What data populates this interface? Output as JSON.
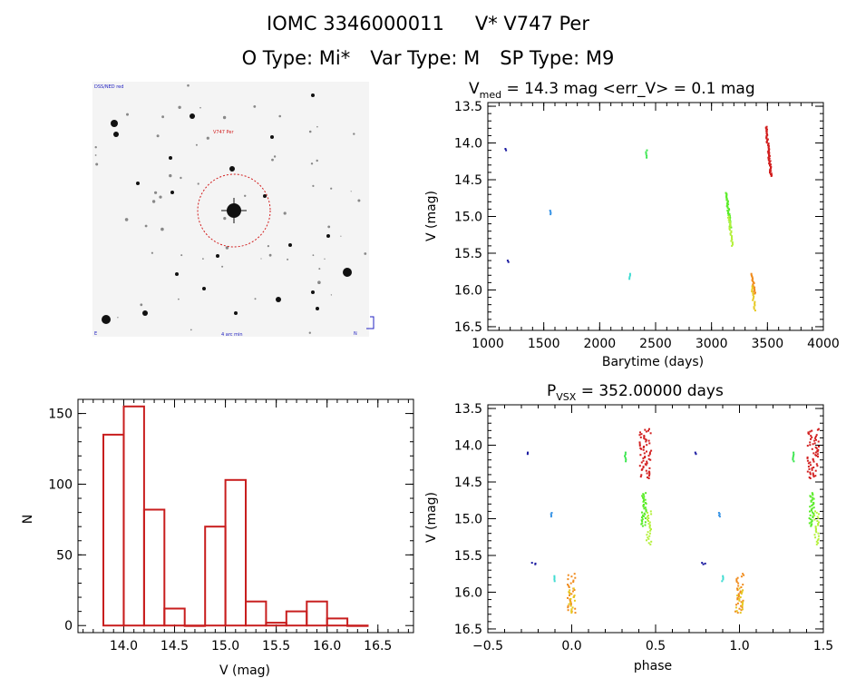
{
  "header": {
    "line1_id": "IOMC 3346000011",
    "line1_name": "V* V747 Per",
    "line2_otype": "O Type: Mi*",
    "line2_vartype": "Var Type: M",
    "line2_sptype": "SP Type: M9"
  },
  "finder": {
    "corner_tl": "DSS/NED red",
    "target_label": "V747 Per",
    "bottom_left": "E",
    "bottom_center": "4 arc min",
    "bottom_right": "N"
  },
  "chart_data": [
    {
      "id": "lightcurve",
      "type": "scatter",
      "title_main": "V",
      "title_sub": "med",
      "title_rest": " = 14.3 mag <err_V> = 0.1 mag",
      "xlabel": "Barytime (days)",
      "ylabel": "V (mag)",
      "xlim": [
        1000,
        4000
      ],
      "ylim": [
        16.55,
        13.45
      ],
      "xticks": [
        "1000",
        "1500",
        "2000",
        "2500",
        "3000",
        "3500",
        "4000"
      ],
      "yticks": [
        "13.5",
        "14.0",
        "14.5",
        "15.0",
        "15.5",
        "16.0",
        "16.5"
      ],
      "clusters": [
        {
          "x": 1160,
          "y0": 14.08,
          "y1": 14.1,
          "n": 2,
          "color": "#1a1aa0"
        },
        {
          "x": 1180,
          "y0": 15.6,
          "y1": 15.62,
          "n": 2,
          "color": "#1a1aa0"
        },
        {
          "x": 1560,
          "y0": 14.92,
          "y1": 14.97,
          "n": 4,
          "color": "#3c96e6"
        },
        {
          "x": 2270,
          "y0": 15.78,
          "y1": 15.85,
          "n": 4,
          "color": "#40dcd2"
        },
        {
          "x": 2420,
          "y0": 14.1,
          "y1": 14.2,
          "n": 5,
          "color": "#3ce650"
        },
        {
          "x": 3150,
          "y0": 14.68,
          "y1": 15.15,
          "n": 40,
          "color": "#5aec28",
          "spread": 12
        },
        {
          "x": 3170,
          "y0": 15.0,
          "y1": 15.4,
          "n": 25,
          "color": "#b4f03c",
          "spread": 10
        },
        {
          "x": 3375,
          "y0": 15.78,
          "y1": 16.05,
          "n": 20,
          "color": "#f08c1e",
          "spread": 8
        },
        {
          "x": 3375,
          "y0": 15.95,
          "y1": 16.28,
          "n": 15,
          "color": "#e6c81e",
          "spread": 8
        },
        {
          "x": 3510,
          "y0": 13.78,
          "y1": 14.45,
          "n": 60,
          "color": "#d21e1e",
          "spread": 14
        }
      ]
    },
    {
      "id": "histogram",
      "type": "bar",
      "xlabel": "V (mag)",
      "ylabel": "N",
      "xlim": [
        13.55,
        16.85
      ],
      "ylim": [
        -5,
        160
      ],
      "xticks": [
        "14.0",
        "14.5",
        "15.0",
        "15.5",
        "16.0",
        "16.5"
      ],
      "yticks": [
        "0",
        "50",
        "100",
        "150"
      ],
      "bin_width": 0.2,
      "bin_starts": [
        13.8,
        14.0,
        14.2,
        14.4,
        14.6,
        14.8,
        15.0,
        15.2,
        15.4,
        15.6,
        15.8,
        16.0,
        16.2
      ],
      "values": [
        135,
        155,
        82,
        12,
        0,
        70,
        103,
        17,
        2,
        10,
        17,
        5,
        0
      ],
      "color": "#c81e1e"
    },
    {
      "id": "phased",
      "type": "scatter",
      "title_main": "P",
      "title_sub": "VSX",
      "title_rest": " = 352.00000 days",
      "xlabel": "phase",
      "ylabel": "V (mag)",
      "xlim": [
        -0.5,
        1.5
      ],
      "ylim": [
        16.55,
        13.45
      ],
      "xticks": [
        "−0.5",
        "0.0",
        "0.5",
        "1.0",
        "1.5"
      ],
      "yticks": [
        "13.5",
        "14.0",
        "14.5",
        "15.0",
        "15.5",
        "16.0",
        "16.5"
      ],
      "clusters": [
        {
          "x": -0.26,
          "y0": 14.1,
          "y1": 14.12,
          "n": 2,
          "color": "#1a1aa0"
        },
        {
          "x": -0.22,
          "y0": 15.6,
          "y1": 15.62,
          "n": 3,
          "color": "#1a1aa0",
          "xspread": 0.04
        },
        {
          "x": -0.12,
          "y0": 14.92,
          "y1": 14.97,
          "n": 4,
          "color": "#3c96e6"
        },
        {
          "x": -0.1,
          "y0": 15.78,
          "y1": 15.85,
          "n": 4,
          "color": "#40dcd2"
        },
        {
          "x": 0.0,
          "y0": 15.75,
          "y1": 16.28,
          "n": 30,
          "color": "#f08c1e",
          "xspread": 0.05
        },
        {
          "x": 0.0,
          "y0": 15.95,
          "y1": 16.28,
          "n": 15,
          "color": "#e6c81e",
          "xspread": 0.04
        },
        {
          "x": 0.32,
          "y0": 14.1,
          "y1": 14.22,
          "n": 6,
          "color": "#3ce650"
        },
        {
          "x": 0.43,
          "y0": 14.65,
          "y1": 15.1,
          "n": 35,
          "color": "#5aec28",
          "xspread": 0.03
        },
        {
          "x": 0.46,
          "y0": 14.9,
          "y1": 15.35,
          "n": 25,
          "color": "#b4f03c",
          "xspread": 0.03
        },
        {
          "x": 0.44,
          "y0": 13.78,
          "y1": 14.45,
          "n": 60,
          "color": "#d21e1e",
          "xspread": 0.07
        },
        {
          "x": 0.74,
          "y0": 14.1,
          "y1": 14.12,
          "n": 2,
          "color": "#1a1aa0"
        },
        {
          "x": 0.78,
          "y0": 15.6,
          "y1": 15.62,
          "n": 3,
          "color": "#1a1aa0",
          "xspread": 0.04
        },
        {
          "x": 0.88,
          "y0": 14.92,
          "y1": 14.97,
          "n": 4,
          "color": "#3c96e6"
        },
        {
          "x": 0.9,
          "y0": 15.78,
          "y1": 15.85,
          "n": 4,
          "color": "#40dcd2"
        },
        {
          "x": 1.0,
          "y0": 15.75,
          "y1": 16.28,
          "n": 30,
          "color": "#f08c1e",
          "xspread": 0.05
        },
        {
          "x": 1.0,
          "y0": 15.95,
          "y1": 16.28,
          "n": 15,
          "color": "#e6c81e",
          "xspread": 0.04
        },
        {
          "x": 1.32,
          "y0": 14.1,
          "y1": 14.22,
          "n": 6,
          "color": "#3ce650"
        },
        {
          "x": 1.43,
          "y0": 14.65,
          "y1": 15.1,
          "n": 35,
          "color": "#5aec28",
          "xspread": 0.03
        },
        {
          "x": 1.46,
          "y0": 14.9,
          "y1": 15.35,
          "n": 25,
          "color": "#b4f03c",
          "xspread": 0.03
        },
        {
          "x": 1.44,
          "y0": 13.78,
          "y1": 14.45,
          "n": 60,
          "color": "#d21e1e",
          "xspread": 0.07
        }
      ]
    }
  ]
}
